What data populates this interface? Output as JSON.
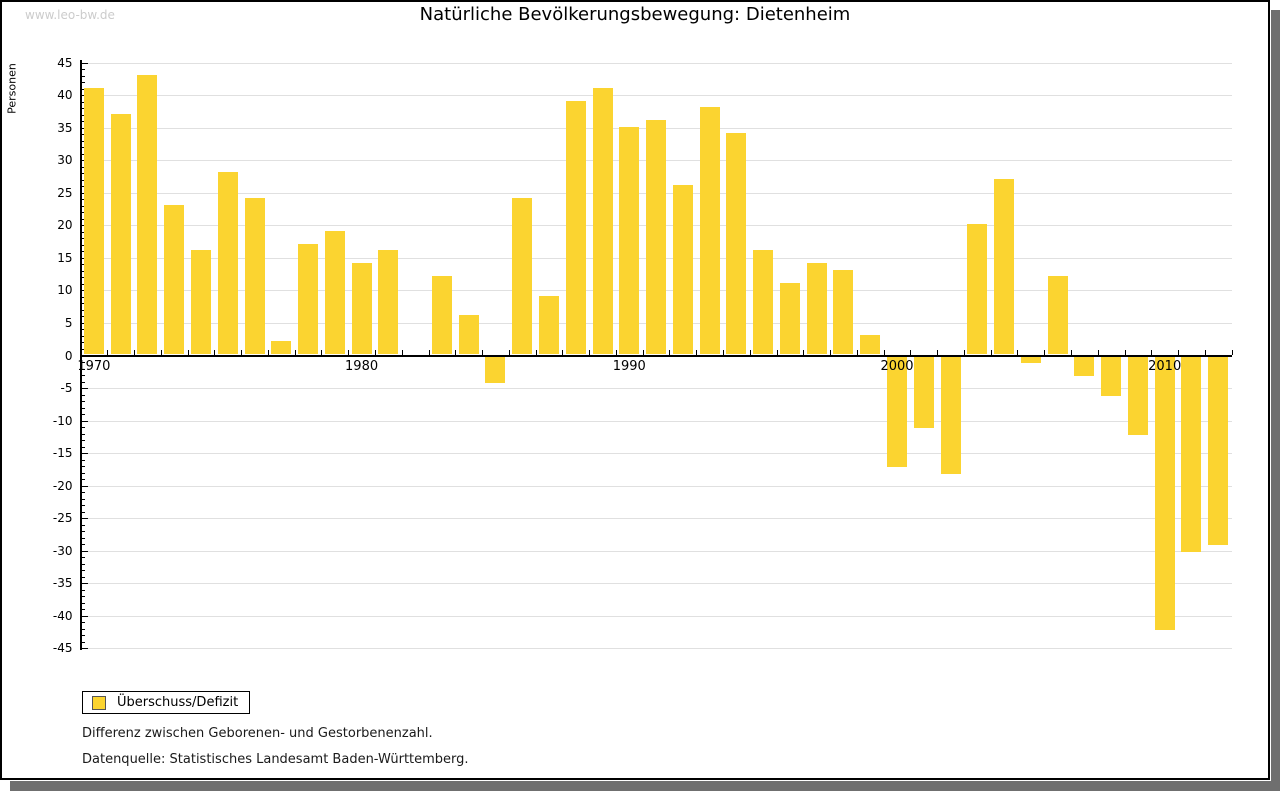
{
  "watermark": "www.leo-bw.de",
  "title": "Natürliche Bevölkerungsbewegung: Dietenheim",
  "legend": {
    "label": "Überschuss/Defizit",
    "position": "bottom-left"
  },
  "notes": [
    "Differenz zwischen Geborenen- und Gestorbenenzahl.",
    "Datenquelle: Statistisches Landesamt Baden-Württemberg."
  ],
  "colors": {
    "bar": "#fbd430",
    "grid": "#e0e0e0",
    "axis": "#000000",
    "watermark": "#cccccc",
    "shadow": "#6f6f6f",
    "text": "#000000"
  },
  "chart_data": {
    "type": "bar",
    "title": "Natürliche Bevölkerungsbewegung: Dietenheim",
    "xlabel": "",
    "ylabel": "Personen",
    "ylim": [
      -45,
      45
    ],
    "ytick_step": 5,
    "yminor_step": 1,
    "grid": "horizontal",
    "xticks": [
      1970,
      1980,
      1990,
      2000,
      2010
    ],
    "series_name": "Überschuss/Defizit",
    "years": [
      1970,
      1971,
      1972,
      1973,
      1974,
      1975,
      1976,
      1977,
      1978,
      1979,
      1980,
      1981,
      1982,
      1983,
      1984,
      1985,
      1986,
      1987,
      1988,
      1989,
      1990,
      1991,
      1992,
      1993,
      1994,
      1995,
      1996,
      1997,
      1998,
      1999,
      2000,
      2001,
      2002,
      2003,
      2004,
      2005,
      2006,
      2007,
      2008,
      2009,
      2010,
      2011,
      2012
    ],
    "values": [
      41,
      37,
      43,
      23,
      16,
      28,
      24,
      2,
      17,
      19,
      14,
      16,
      0,
      12,
      6,
      -4,
      24,
      9,
      39,
      41,
      35,
      36,
      26,
      38,
      34,
      16,
      11,
      14,
      13,
      3,
      -17,
      -11,
      -18,
      20,
      27,
      -1,
      12,
      -3,
      -6,
      -12,
      -42,
      -30,
      -29
    ]
  }
}
